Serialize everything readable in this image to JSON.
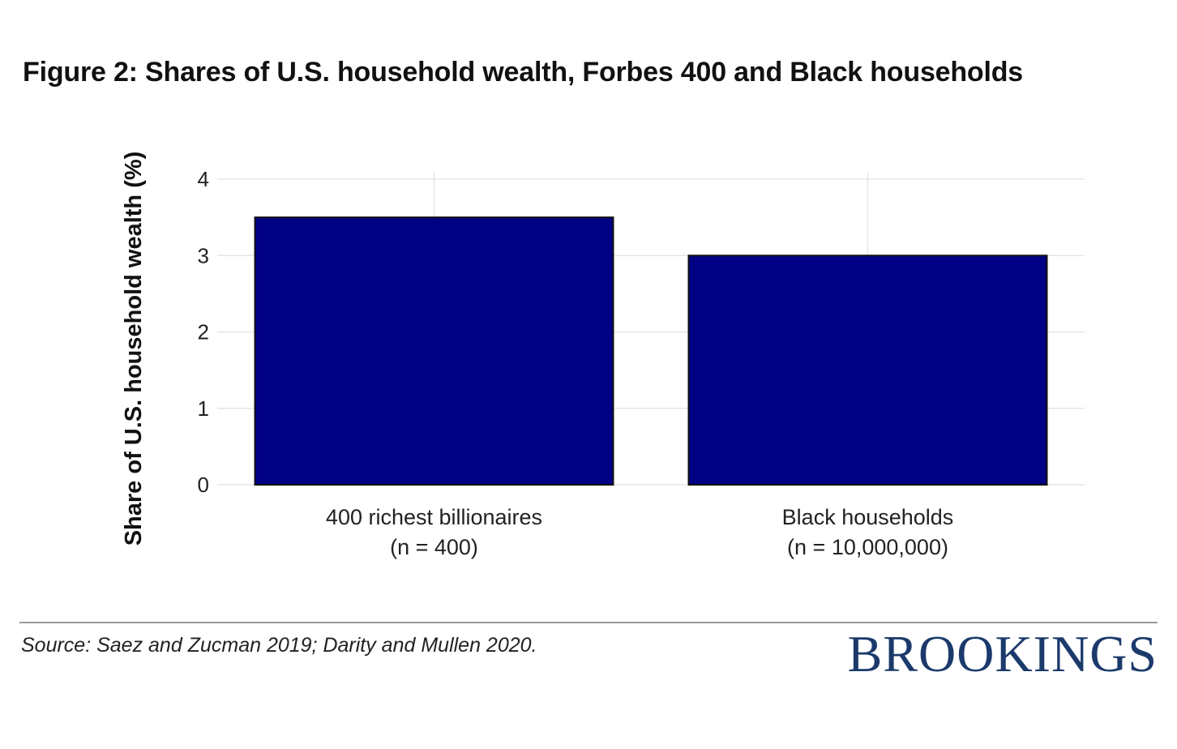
{
  "title": "Figure 2: Shares of U.S. household wealth, Forbes 400 and Black households",
  "source": "Source: Saez and Zucman 2019; Darity and Mullen 2020.",
  "brand": "BROOKINGS",
  "colors": {
    "bar": "#000084",
    "bar_outline": "#111111",
    "grid": "#e6e6e6",
    "brand": "#1b3a6b"
  },
  "chart_data": {
    "type": "bar",
    "categories": [
      [
        "400 richest billionaires",
        "(n = 400)"
      ],
      [
        "Black households",
        "(n = 10,000,000)"
      ]
    ],
    "values": [
      3.5,
      3.0
    ],
    "ylabel": "Share of U.S. household wealth (%)",
    "xlabel": "",
    "ylim": [
      0,
      4
    ],
    "yticks": [
      0,
      1,
      2,
      3,
      4
    ],
    "grid": true
  }
}
